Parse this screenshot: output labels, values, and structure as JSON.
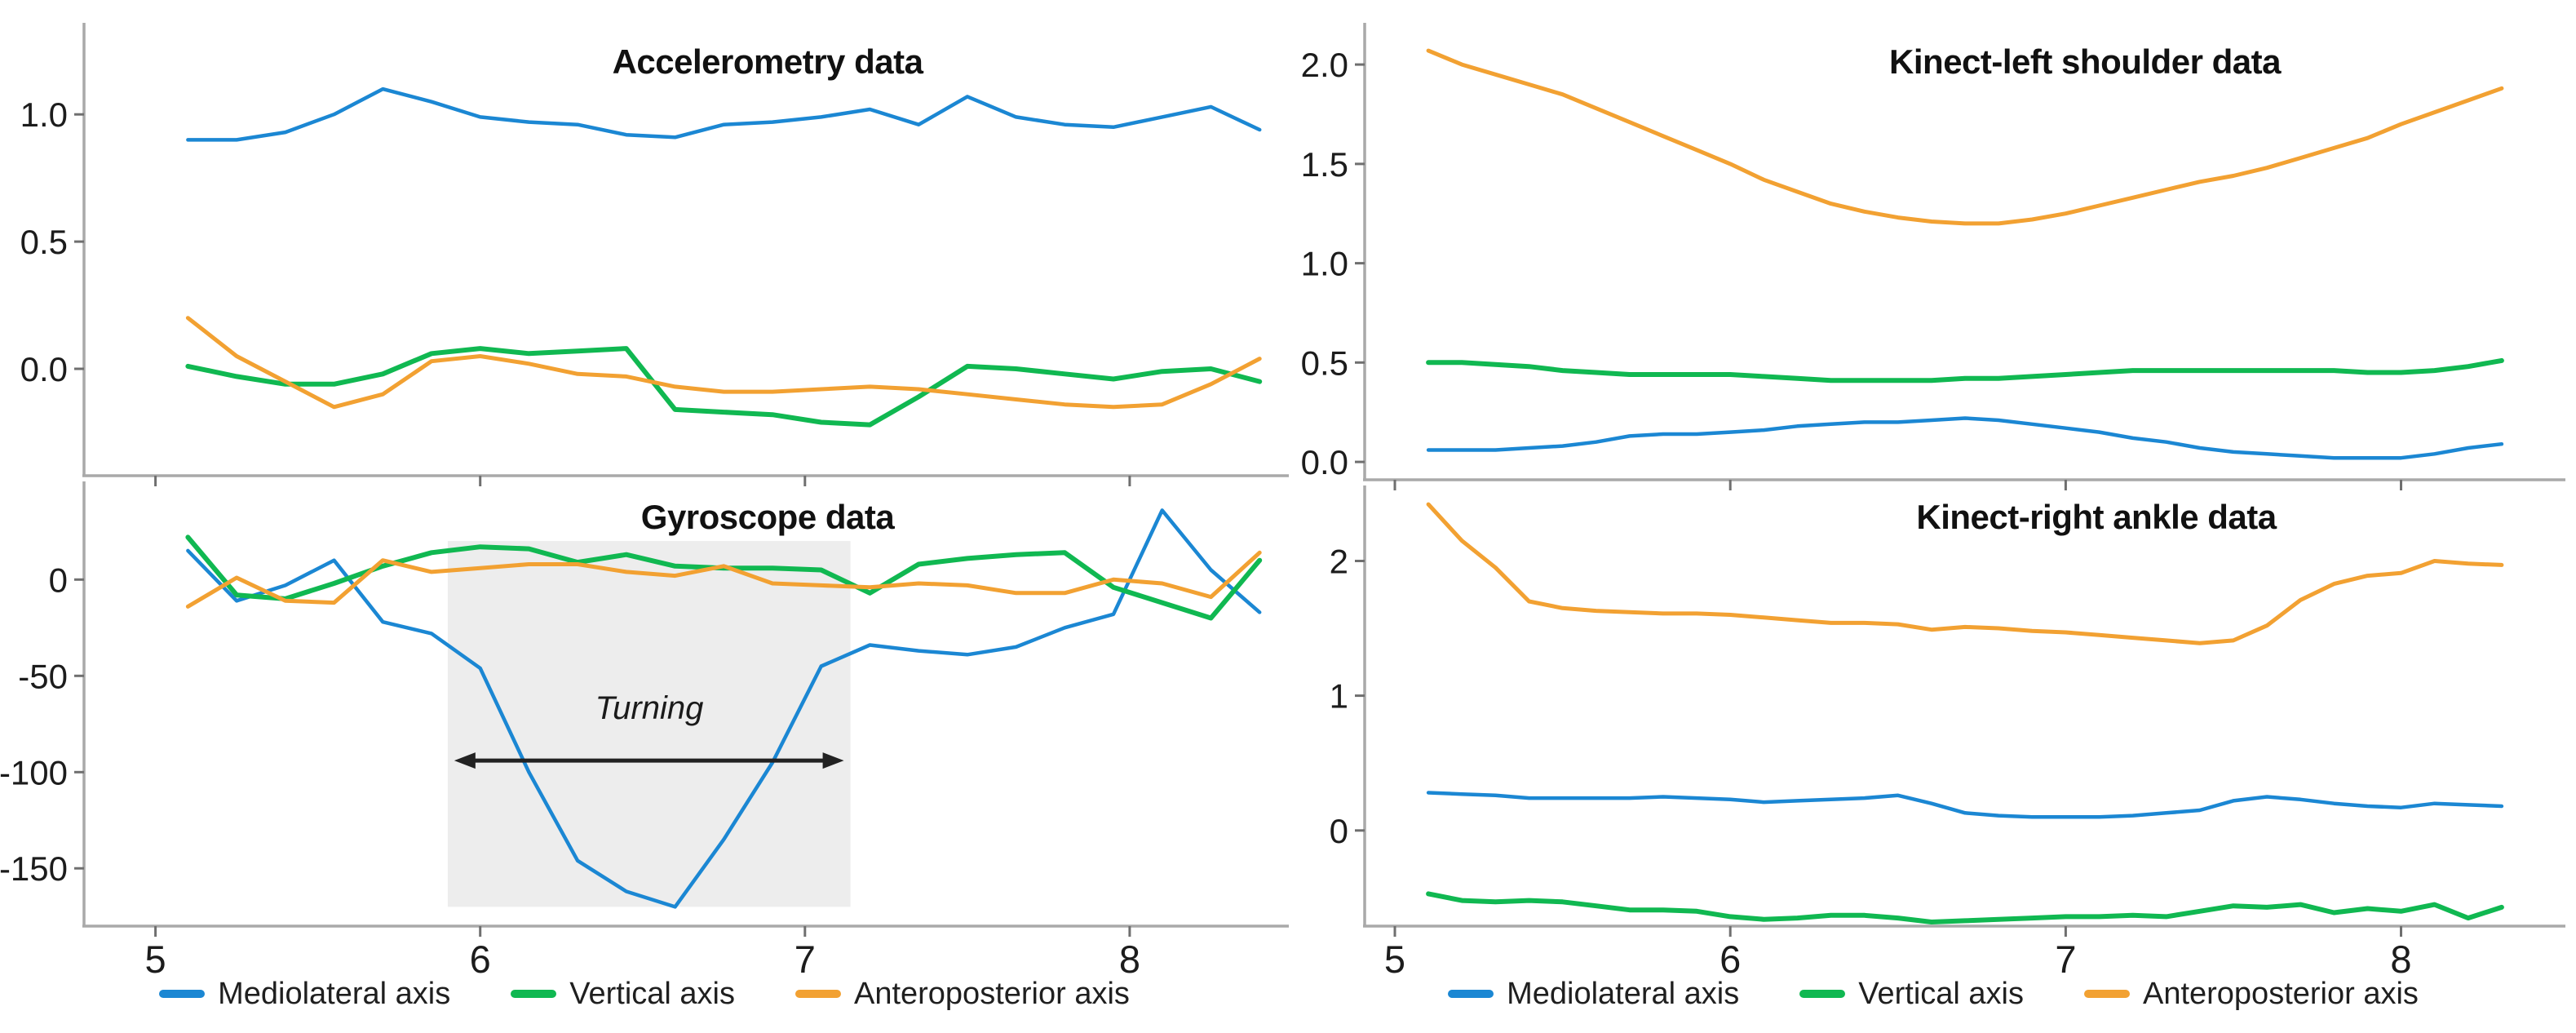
{
  "figure": {
    "background": "#ffffff"
  },
  "colors": {
    "mediolateral": "#1b87d3",
    "vertical": "#10b851",
    "anteroposterior": "#f2a132",
    "axis": "#a9a9a9",
    "tick": "#6f6f6f",
    "text": "#1c1c1c",
    "shaded_region": "#ededed",
    "arrow": "#222222"
  },
  "legend": {
    "items": [
      {
        "label": "Mediolateral axis",
        "color_key": "mediolateral"
      },
      {
        "label": "Vertical axis",
        "color_key": "vertical"
      },
      {
        "label": "Anteroposterior axis",
        "color_key": "anteroposterior"
      }
    ]
  },
  "chart_data": [
    {
      "id": "accelerometry",
      "type": "line",
      "title": "Accelerometry data",
      "xlabel": "",
      "ylabel": "",
      "grid": false,
      "xlim": [
        4.78,
        8.49
      ],
      "ylim": [
        -0.42,
        1.36
      ],
      "x_ticks": {
        "values": [
          5,
          6,
          7,
          8
        ],
        "labels": [
          "5",
          "6",
          "7",
          "8"
        ],
        "show_labels": false
      },
      "y_ticks": {
        "values": [
          0,
          0.5,
          1
        ],
        "labels": [
          "0.0",
          "0.5",
          "1.0"
        ]
      },
      "x": [
        5.1,
        5.25,
        5.4,
        5.55,
        5.7,
        5.85,
        6.0,
        6.15,
        6.3,
        6.45,
        6.6,
        6.75,
        6.9,
        7.05,
        7.2,
        7.35,
        7.5,
        7.65,
        7.8,
        7.95,
        8.1,
        8.25,
        8.4
      ],
      "series": [
        {
          "name": "Mediolateral axis",
          "color_key": "mediolateral",
          "values": [
            0.9,
            0.9,
            0.93,
            1.0,
            1.1,
            1.05,
            0.99,
            0.97,
            0.96,
            0.92,
            0.91,
            0.96,
            0.97,
            0.99,
            1.02,
            0.96,
            1.07,
            0.99,
            0.96,
            0.95,
            0.99,
            1.03,
            0.94
          ]
        },
        {
          "name": "Vertical axis",
          "color_key": "vertical",
          "values": [
            0.01,
            -0.03,
            -0.06,
            -0.06,
            -0.02,
            0.06,
            0.08,
            0.06,
            0.07,
            0.08,
            -0.16,
            -0.17,
            -0.18,
            -0.21,
            -0.22,
            -0.11,
            0.01,
            0.0,
            -0.02,
            -0.04,
            -0.01,
            0.0,
            -0.05
          ]
        },
        {
          "name": "Anteroposterior axis",
          "color_key": "anteroposterior",
          "values": [
            0.2,
            0.05,
            -0.05,
            -0.15,
            -0.1,
            0.03,
            0.05,
            0.02,
            -0.02,
            -0.03,
            -0.07,
            -0.09,
            -0.09,
            -0.08,
            -0.07,
            -0.08,
            -0.1,
            -0.12,
            -0.14,
            -0.15,
            -0.14,
            -0.06,
            0.04
          ]
        }
      ]
    },
    {
      "id": "gyroscope",
      "type": "line",
      "title": "Gyroscope data",
      "xlabel": "",
      "ylabel": "",
      "grid": false,
      "xlim": [
        4.78,
        8.49
      ],
      "ylim": [
        -180,
        51
      ],
      "x_ticks": {
        "values": [
          5,
          6,
          7,
          8
        ],
        "labels": [
          "5",
          "6",
          "7",
          "8"
        ],
        "show_labels": true
      },
      "y_ticks": {
        "values": [
          0,
          -50,
          -100,
          -150
        ],
        "labels": [
          "0",
          "-50",
          "-100",
          "-150"
        ]
      },
      "x": [
        5.1,
        5.25,
        5.4,
        5.55,
        5.7,
        5.85,
        6.0,
        6.15,
        6.3,
        6.45,
        6.6,
        6.75,
        6.9,
        7.05,
        7.2,
        7.35,
        7.5,
        7.65,
        7.8,
        7.95,
        8.1,
        8.25,
        8.4
      ],
      "series": [
        {
          "name": "Mediolateral axis",
          "color_key": "mediolateral",
          "values": [
            15,
            -11,
            -3,
            10,
            -22,
            -28,
            -46,
            -100,
            -146,
            -162,
            -170,
            -135,
            -95,
            -45,
            -34,
            -37,
            -39,
            -35,
            -25,
            -18,
            36,
            5,
            -17
          ]
        },
        {
          "name": "Vertical axis",
          "color_key": "vertical",
          "values": [
            22,
            -8,
            -10,
            -2,
            7,
            14,
            17,
            16,
            9,
            13,
            7,
            6,
            6,
            5,
            -7,
            8,
            11,
            13,
            14,
            -4,
            -12,
            -20,
            10
          ]
        },
        {
          "name": "Anteroposterior axis",
          "color_key": "anteroposterior",
          "values": [
            -14,
            1,
            -11,
            -12,
            10,
            4,
            6,
            8,
            8,
            4,
            2,
            7,
            -2,
            -3,
            -4,
            -2,
            -3,
            -7,
            -7,
            0,
            -2,
            -9,
            14
          ]
        }
      ],
      "annotation": {
        "label": "Turning",
        "region": {
          "x1": 5.9,
          "x2": 7.14,
          "y1": 20,
          "y2": -170
        },
        "arrow": {
          "x1": 5.92,
          "x2": 7.12,
          "y": -94
        },
        "label_pos": {
          "x": 6.52,
          "y": -70
        }
      }
    },
    {
      "id": "kinect-left-shoulder",
      "type": "line",
      "title": "Kinect-left shoulder data",
      "xlabel": "",
      "ylabel": "",
      "grid": false,
      "xlim": [
        4.91,
        8.49
      ],
      "ylim": [
        -0.09,
        2.21
      ],
      "x_ticks": {
        "values": [
          5,
          6,
          7,
          8
        ],
        "labels": [
          "5",
          "6",
          "7",
          "8"
        ],
        "show_labels": false
      },
      "y_ticks": {
        "values": [
          0,
          0.5,
          1,
          1.5,
          2
        ],
        "labels": [
          "0.0",
          "0.5",
          "1.0",
          "1.5",
          "2.0"
        ]
      },
      "x": [
        5.1,
        5.2,
        5.3,
        5.4,
        5.5,
        5.6,
        5.7,
        5.8,
        5.9,
        6.0,
        6.1,
        6.2,
        6.3,
        6.4,
        6.5,
        6.6,
        6.7,
        6.8,
        6.9,
        7.0,
        7.1,
        7.2,
        7.3,
        7.4,
        7.5,
        7.6,
        7.7,
        7.8,
        7.9,
        8.0,
        8.1,
        8.2,
        8.3
      ],
      "series": [
        {
          "name": "Mediolateral axis",
          "color_key": "mediolateral",
          "values": [
            0.06,
            0.06,
            0.06,
            0.07,
            0.08,
            0.1,
            0.13,
            0.14,
            0.14,
            0.15,
            0.16,
            0.18,
            0.19,
            0.2,
            0.2,
            0.21,
            0.22,
            0.21,
            0.19,
            0.17,
            0.15,
            0.12,
            0.1,
            0.07,
            0.05,
            0.04,
            0.03,
            0.02,
            0.02,
            0.02,
            0.04,
            0.07,
            0.09
          ]
        },
        {
          "name": "Vertical axis",
          "color_key": "vertical",
          "values": [
            0.5,
            0.5,
            0.49,
            0.48,
            0.46,
            0.45,
            0.44,
            0.44,
            0.44,
            0.44,
            0.43,
            0.42,
            0.41,
            0.41,
            0.41,
            0.41,
            0.42,
            0.42,
            0.43,
            0.44,
            0.45,
            0.46,
            0.46,
            0.46,
            0.46,
            0.46,
            0.46,
            0.46,
            0.45,
            0.45,
            0.46,
            0.48,
            0.51
          ]
        },
        {
          "name": "Anteroposterior axis",
          "color_key": "anteroposterior",
          "values": [
            2.07,
            2.0,
            1.95,
            1.9,
            1.85,
            1.78,
            1.71,
            1.64,
            1.57,
            1.5,
            1.42,
            1.36,
            1.3,
            1.26,
            1.23,
            1.21,
            1.2,
            1.2,
            1.22,
            1.25,
            1.29,
            1.33,
            1.37,
            1.41,
            1.44,
            1.48,
            1.53,
            1.58,
            1.63,
            1.7,
            1.76,
            1.82,
            1.88
          ]
        }
      ]
    },
    {
      "id": "kinect-right-ankle",
      "type": "line",
      "title": "Kinect-right ankle data",
      "xlabel": "",
      "ylabel": "",
      "grid": false,
      "xlim": [
        4.91,
        8.49
      ],
      "ylim": [
        -0.71,
        2.56
      ],
      "x_ticks": {
        "values": [
          5,
          6,
          7,
          8
        ],
        "labels": [
          "5",
          "6",
          "7",
          "8"
        ],
        "show_labels": true
      },
      "y_ticks": {
        "values": [
          0,
          1,
          2
        ],
        "labels": [
          "0",
          "1",
          "2"
        ]
      },
      "x": [
        5.1,
        5.2,
        5.3,
        5.4,
        5.5,
        5.6,
        5.7,
        5.8,
        5.9,
        6.0,
        6.1,
        6.2,
        6.3,
        6.4,
        6.5,
        6.6,
        6.7,
        6.8,
        6.9,
        7.0,
        7.1,
        7.2,
        7.3,
        7.4,
        7.5,
        7.6,
        7.7,
        7.8,
        7.9,
        8.0,
        8.1,
        8.2,
        8.3
      ],
      "series": [
        {
          "name": "Mediolateral axis",
          "color_key": "mediolateral",
          "values": [
            0.28,
            0.27,
            0.26,
            0.24,
            0.24,
            0.24,
            0.24,
            0.25,
            0.24,
            0.23,
            0.21,
            0.22,
            0.23,
            0.24,
            0.26,
            0.2,
            0.13,
            0.11,
            0.1,
            0.1,
            0.1,
            0.11,
            0.13,
            0.15,
            0.22,
            0.25,
            0.23,
            0.2,
            0.18,
            0.17,
            0.2,
            0.19,
            0.18
          ]
        },
        {
          "name": "Vertical axis",
          "color_key": "vertical",
          "values": [
            -0.47,
            -0.52,
            -0.53,
            -0.52,
            -0.53,
            -0.56,
            -0.59,
            -0.59,
            -0.6,
            -0.64,
            -0.66,
            -0.65,
            -0.63,
            -0.63,
            -0.65,
            -0.68,
            -0.67,
            -0.66,
            -0.65,
            -0.64,
            -0.64,
            -0.63,
            -0.64,
            -0.6,
            -0.56,
            -0.57,
            -0.55,
            -0.61,
            -0.58,
            -0.6,
            -0.55,
            -0.65,
            -0.57
          ]
        },
        {
          "name": "Anteroposterior axis",
          "color_key": "anteroposterior",
          "values": [
            2.42,
            2.15,
            1.95,
            1.7,
            1.65,
            1.63,
            1.62,
            1.61,
            1.61,
            1.6,
            1.58,
            1.56,
            1.54,
            1.54,
            1.53,
            1.49,
            1.51,
            1.5,
            1.48,
            1.47,
            1.45,
            1.43,
            1.41,
            1.39,
            1.41,
            1.52,
            1.71,
            1.83,
            1.89,
            1.91,
            2.0,
            1.98,
            1.97
          ]
        }
      ]
    }
  ]
}
